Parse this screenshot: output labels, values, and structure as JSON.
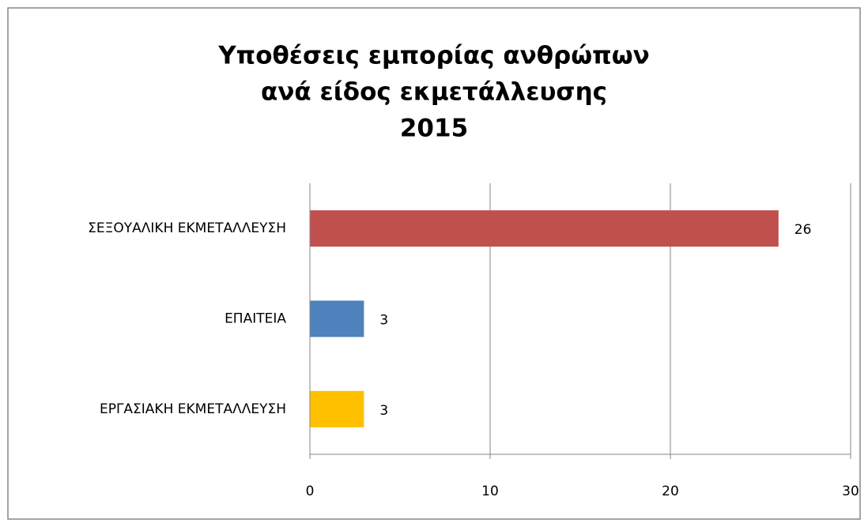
{
  "chart_data": {
    "type": "bar",
    "orientation": "horizontal",
    "title": [
      "Υποθέσεις εμπορίας ανθρώπων",
      "ανά είδος εκμετάλλευσης",
      "2015"
    ],
    "categories": [
      "ΣΕΞΟΥΑΛΙΚΗ ΕΚΜΕΤΑΛΛΕΥΣΗ",
      "ΕΠΑΙΤΕΙΑ",
      "ΕΡΓΑΣΙΑΚΗ ΕΚΜΕΤΑΛΛΕΥΣΗ"
    ],
    "values": [
      26,
      3,
      3
    ],
    "colors": [
      "#c0504d",
      "#4f81bd",
      "#ffc000"
    ],
    "xlim": [
      0,
      30
    ],
    "xticks": [
      0,
      10,
      20,
      30
    ],
    "grid": true
  }
}
